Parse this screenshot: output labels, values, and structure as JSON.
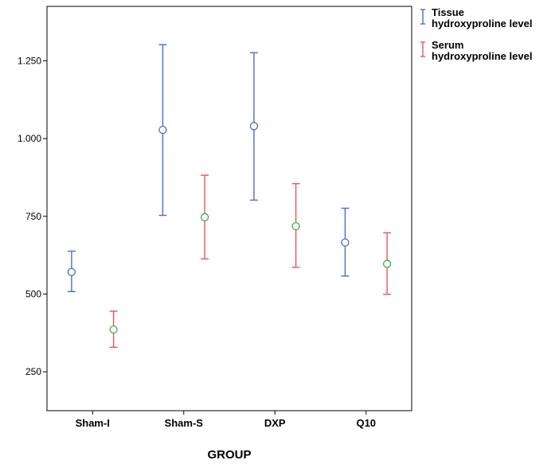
{
  "chart_data": {
    "type": "errorbar",
    "xlabel": "GROUP",
    "ylabel": "",
    "ylim": [
      125,
      1425
    ],
    "yticks": [
      250,
      500,
      750,
      1000,
      1250
    ],
    "ytick_labels": [
      "250",
      "500",
      "750",
      "1.000",
      "1.250"
    ],
    "categories": [
      "Sham-I",
      "Sham-S",
      "DXP",
      "Q10"
    ],
    "legend_position": "top-right",
    "series": [
      {
        "name": "Tissue hydroxyproline level",
        "name_lines": [
          "Tissue",
          "hydroxyproline level"
        ],
        "bar_color": "#4a6ec8",
        "marker_color": "#4a6ec8",
        "mean": [
          571,
          1028,
          1040,
          666
        ],
        "lower": [
          508,
          753,
          802,
          558
        ],
        "upper": [
          638,
          1302,
          1276,
          776
        ]
      },
      {
        "name": "Serum hydroxyproline level",
        "name_lines": [
          "Serum",
          "hydroxyproline level"
        ],
        "bar_color": "#e8555a",
        "marker_color": "#3fae46",
        "mean": [
          386,
          747,
          718,
          597
        ],
        "lower": [
          329,
          613,
          586,
          499
        ],
        "upper": [
          445,
          882,
          855,
          697
        ]
      }
    ]
  }
}
